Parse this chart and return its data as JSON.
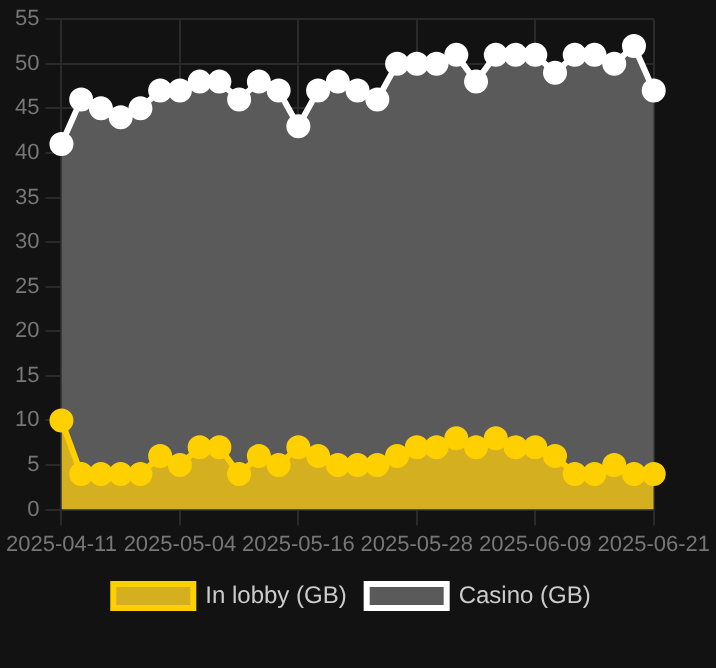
{
  "chart_data": {
    "type": "area",
    "categories": [
      "2025-04-11",
      null,
      null,
      null,
      null,
      null,
      "2025-05-04",
      null,
      null,
      null,
      null,
      null,
      "2025-05-16",
      null,
      null,
      null,
      null,
      null,
      "2025-05-28",
      null,
      null,
      null,
      null,
      null,
      "2025-06-09",
      null,
      null,
      null,
      null,
      null,
      "2025-06-21"
    ],
    "series": [
      {
        "name": "In lobby (GB)",
        "color": "#ffd000",
        "values": [
          10,
          4,
          4,
          4,
          4,
          6,
          5,
          7,
          7,
          4,
          6,
          5,
          7,
          6,
          5,
          5,
          5,
          6,
          7,
          7,
          8,
          7,
          8,
          7,
          7,
          6,
          4,
          4,
          5,
          4,
          4
        ]
      },
      {
        "name": "Casino (GB)",
        "color": "#ffffff",
        "values": [
          41,
          46,
          45,
          44,
          45,
          47,
          47,
          48,
          48,
          46,
          48,
          47,
          43,
          47,
          48,
          47,
          46,
          50,
          50,
          50,
          51,
          48,
          51,
          51,
          51,
          49,
          51,
          51,
          50,
          52,
          47
        ]
      }
    ],
    "ylim": [
      0,
      55
    ],
    "yticks": [
      0,
      5,
      10,
      15,
      20,
      25,
      30,
      35,
      40,
      45,
      50,
      55
    ],
    "grid": true,
    "legend": "bottom",
    "marker": "circle"
  }
}
